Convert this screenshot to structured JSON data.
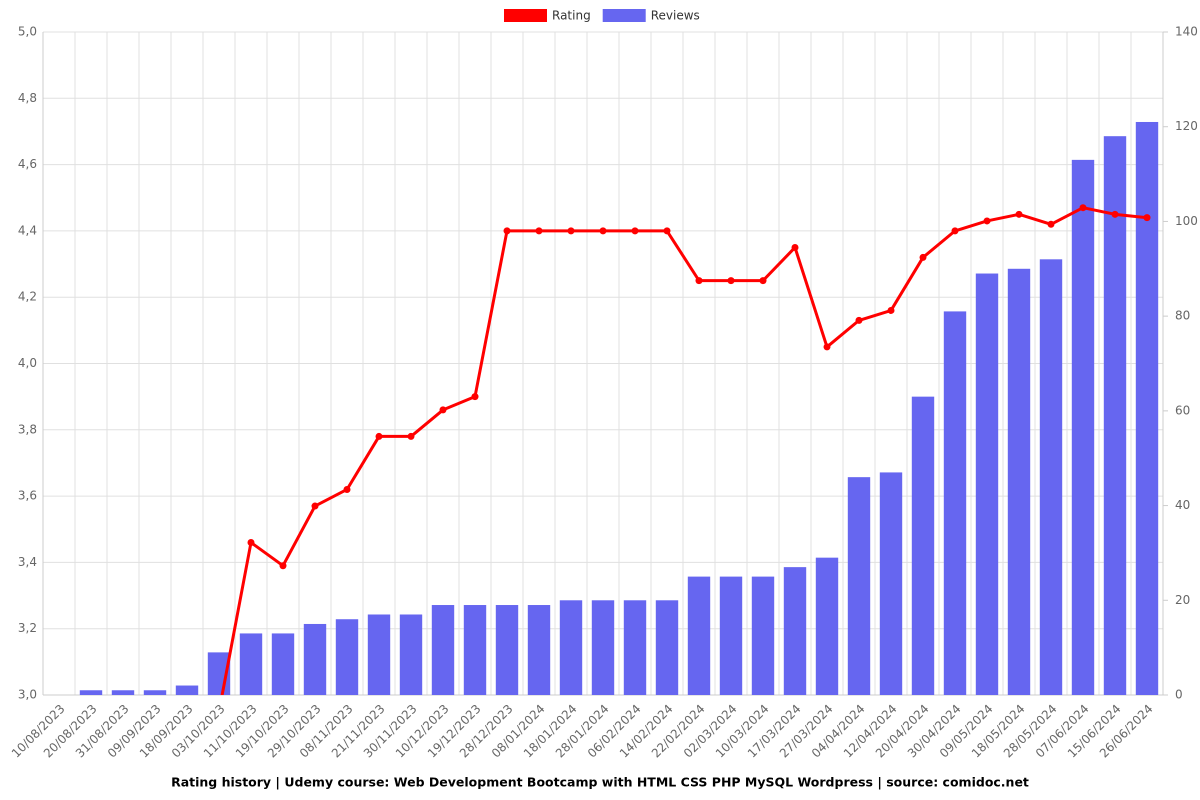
{
  "chart_data": {
    "type": "combo",
    "title": "Rating history | Udemy course: Web Development Bootcamp with HTML CSS PHP MySQL Wordpress | source: comidoc.net",
    "categories": [
      "10/08/2023",
      "20/08/2023",
      "31/08/2023",
      "09/09/2023",
      "18/09/2023",
      "03/10/2023",
      "11/10/2023",
      "19/10/2023",
      "29/10/2023",
      "08/11/2023",
      "21/11/2023",
      "30/11/2023",
      "10/12/2023",
      "19/12/2023",
      "28/12/2023",
      "08/01/2024",
      "18/01/2024",
      "28/01/2024",
      "06/02/2024",
      "14/02/2024",
      "22/02/2024",
      "02/03/2024",
      "10/03/2024",
      "17/03/2024",
      "27/03/2024",
      "04/04/2024",
      "12/04/2024",
      "20/04/2024",
      "30/04/2024",
      "09/05/2024",
      "18/05/2024",
      "28/05/2024",
      "07/06/2024",
      "15/06/2024",
      "26/06/2024"
    ],
    "series": [
      {
        "name": "Rating",
        "type": "line",
        "axis": "y",
        "color": "#ff0000",
        "values": [
          null,
          null,
          null,
          null,
          null,
          2.95,
          3.46,
          3.39,
          3.57,
          3.62,
          3.78,
          3.78,
          3.86,
          3.9,
          4.4,
          4.4,
          4.4,
          4.4,
          4.4,
          4.4,
          4.25,
          4.25,
          4.25,
          4.35,
          4.05,
          4.13,
          4.16,
          4.32,
          4.4,
          4.43,
          4.45,
          4.42,
          4.47,
          4.45,
          4.44
        ]
      },
      {
        "name": "Reviews",
        "type": "bar",
        "axis": "y2",
        "color": "#6666f0",
        "values": [
          0,
          1,
          1,
          1,
          2,
          9,
          13,
          13,
          15,
          16,
          17,
          17,
          19,
          19,
          19,
          19,
          20,
          20,
          20,
          20,
          25,
          25,
          25,
          27,
          29,
          46,
          47,
          63,
          81,
          89,
          90,
          92,
          113,
          118,
          121
        ]
      }
    ],
    "ylim": [
      3,
      5
    ],
    "yticks": [
      {
        "value": 3,
        "label": "3,0"
      },
      {
        "value": 3.2,
        "label": "3,2"
      },
      {
        "value": 3.4,
        "label": "3,4"
      },
      {
        "value": 3.6,
        "label": "3,6"
      },
      {
        "value": 3.8,
        "label": "3,8"
      },
      {
        "value": 4,
        "label": "4,0"
      },
      {
        "value": 4.2,
        "label": "4,2"
      },
      {
        "value": 4.4,
        "label": "4,4"
      },
      {
        "value": 4.6,
        "label": "4,6"
      },
      {
        "value": 4.8,
        "label": "4,8"
      },
      {
        "value": 5,
        "label": "5,0"
      }
    ],
    "y2lim": [
      0,
      140
    ],
    "y2ticks": [
      0,
      20,
      40,
      60,
      80,
      100,
      120,
      140
    ],
    "grid": true,
    "legend": "top"
  }
}
